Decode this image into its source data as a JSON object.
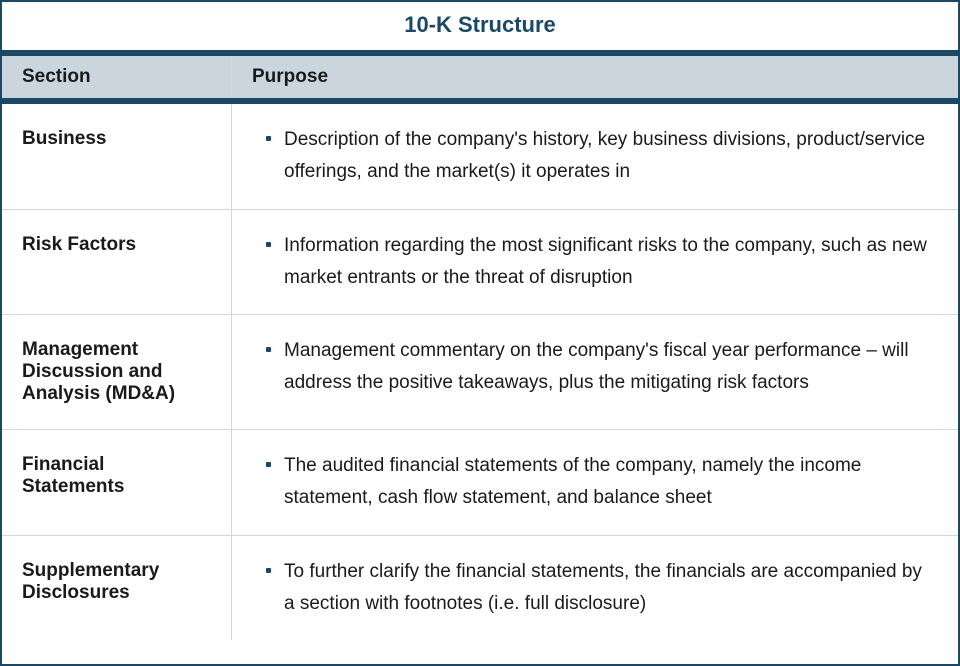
{
  "title": "10-K Structure",
  "title_color": "#1b4965",
  "title_fontsize": "22px",
  "header_bg": "#cbd5de",
  "header_border_color": "#1b4965",
  "text_color": "#1a1a1a",
  "body_fontsize": "19px",
  "columns": {
    "section": "Section",
    "purpose": "Purpose"
  },
  "rows": [
    {
      "section": "Business",
      "purpose": "Description of the company's history, key business divisions, product/service offerings, and the market(s) it operates in"
    },
    {
      "section": "Risk Factors",
      "purpose": "Information regarding the most significant risks to the company, such as new market entrants or the threat of disruption"
    },
    {
      "section": "Management Discussion and Analysis (MD&A)",
      "purpose": "Management commentary on the company's fiscal year performance – will address the positive takeaways, plus the mitigating risk factors"
    },
    {
      "section": "Financial Statements",
      "purpose": "The audited financial statements of the company, namely the income statement, cash flow statement, and balance sheet"
    },
    {
      "section": "Supplementary Disclosures",
      "purpose": "To further clarify the financial statements, the financials are accompanied by a section with footnotes (i.e. full disclosure)"
    }
  ]
}
